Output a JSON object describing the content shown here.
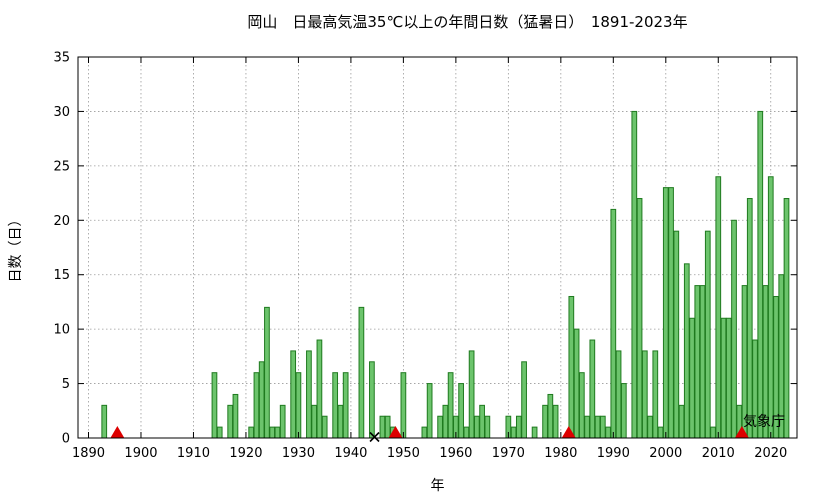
{
  "chart_data": {
    "type": "bar",
    "title": "岡山　日最高気温35℃以上の年間日数（猛暑日）　1891-2023年",
    "xlabel": "年",
    "ylabel": "日数（日）",
    "xlim": [
      1888,
      2025
    ],
    "ylim": [
      0,
      35
    ],
    "xticks": [
      1890,
      1900,
      1910,
      1920,
      1930,
      1940,
      1950,
      1960,
      1970,
      1980,
      1990,
      2000,
      2010,
      2020
    ],
    "yticks": [
      0,
      5,
      10,
      15,
      20,
      25,
      30,
      35
    ],
    "grid": true,
    "series": [
      {
        "years": [
          1891,
          1892,
          1893,
          1894,
          1895,
          1896,
          1897,
          1898,
          1899,
          1900,
          1901,
          1902,
          1903,
          1904,
          1905,
          1906,
          1907,
          1908,
          1909,
          1910,
          1911,
          1912,
          1913,
          1914,
          1915,
          1916,
          1917,
          1918,
          1919,
          1920,
          1921,
          1922,
          1923,
          1924,
          1925,
          1926,
          1927,
          1928,
          1929,
          1930,
          1931,
          1932,
          1933,
          1934,
          1935,
          1936,
          1937,
          1938,
          1939,
          1940,
          1941,
          1942,
          1943,
          1944,
          1945,
          1946,
          1947,
          1948,
          1949,
          1950,
          1951,
          1952,
          1953,
          1954,
          1955,
          1956,
          1957,
          1958,
          1959,
          1960,
          1961,
          1962,
          1963,
          1964,
          1965,
          1966,
          1967,
          1968,
          1969,
          1970,
          1971,
          1972,
          1973,
          1974,
          1975,
          1976,
          1977,
          1978,
          1979,
          1980,
          1981,
          1982,
          1983,
          1984,
          1985,
          1986,
          1987,
          1988,
          1989,
          1990,
          1991,
          1992,
          1993,
          1994,
          1995,
          1996,
          1997,
          1998,
          1999,
          2000,
          2001,
          2002,
          2003,
          2004,
          2005,
          2006,
          2007,
          2008,
          2009,
          2010,
          2011,
          2012,
          2013,
          2014,
          2015,
          2016,
          2017,
          2018,
          2019,
          2020,
          2021,
          2022,
          2023
        ],
        "values": [
          0,
          0,
          3,
          0,
          0,
          0,
          0,
          0,
          0,
          0,
          0,
          0,
          0,
          0,
          0,
          0,
          0,
          0,
          0,
          0,
          0,
          0,
          0,
          6,
          1,
          0,
          3,
          4,
          0,
          0,
          1,
          6,
          7,
          12,
          1,
          1,
          3,
          0,
          8,
          6,
          0,
          8,
          3,
          9,
          2,
          0,
          6,
          3,
          6,
          0,
          0,
          12,
          0,
          7,
          null,
          2,
          2,
          1,
          0,
          6,
          0,
          0,
          0,
          1,
          5,
          0,
          2,
          3,
          6,
          2,
          5,
          1,
          8,
          2,
          3,
          2,
          0,
          0,
          0,
          2,
          1,
          2,
          7,
          0,
          1,
          0,
          3,
          4,
          3,
          0,
          0,
          13,
          10,
          6,
          2,
          9,
          2,
          2,
          1,
          21,
          8,
          5,
          0,
          30,
          22,
          8,
          2,
          8,
          1,
          23,
          23,
          19,
          3,
          16,
          11,
          14,
          14,
          19,
          1,
          24,
          11,
          11,
          20,
          3,
          14,
          22,
          9,
          30,
          14,
          24,
          13,
          15,
          22
        ]
      }
    ],
    "markers": [
      {
        "type": "relocation",
        "symbol": "▲",
        "years": [
          1895.5,
          1948.5,
          1981.5,
          2014.5
        ]
      },
      {
        "type": "missing",
        "symbol": "×",
        "years": [
          1944.5
        ]
      }
    ],
    "annotation": "気象庁",
    "colors": {
      "bar_fill": "#6cc46c",
      "bar_edge": "#1f7a1f",
      "marker": "#dd0000",
      "missing": "#000000"
    }
  }
}
